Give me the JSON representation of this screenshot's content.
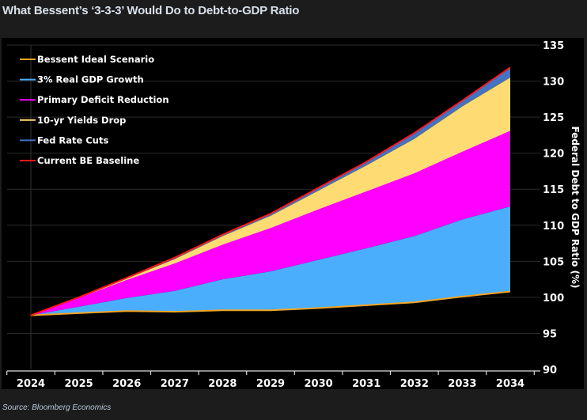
{
  "title": "What Bessent’s ‘3-3-3’ Would Do to Debt-to-GDP Ratio",
  "source": "Source: Bloomberg Economics",
  "chart_data": {
    "type": "area",
    "title": "What Bessent’s ‘3-3-3’ Would Do to Debt-to-GDP Ratio",
    "xlabel": "",
    "ylabel": "Federal Debt to GDP Ratio (%)",
    "ylim": [
      90,
      135
    ],
    "yticks": [
      90,
      95,
      100,
      105,
      110,
      115,
      120,
      125,
      130,
      135
    ],
    "x": [
      2024,
      2025,
      2026,
      2027,
      2028,
      2029,
      2030,
      2031,
      2032,
      2033,
      2034
    ],
    "legend_position": "top-left",
    "grid": true,
    "series": [
      {
        "name": "Bessent Ideal Scenario",
        "color": "#f5a623",
        "values": [
          97.5,
          97.8,
          98.1,
          98.0,
          98.2,
          98.2,
          98.5,
          98.9,
          99.3,
          100.1,
          100.8
        ]
      },
      {
        "name": "3% Real GDP Growth",
        "color": "#4aaefc",
        "values": [
          97.5,
          98.7,
          99.9,
          100.9,
          102.5,
          103.6,
          105.2,
          106.8,
          108.5,
          110.8,
          112.6
        ]
      },
      {
        "name": "Primary Deficit Reduction",
        "color": "#ff00ff",
        "values": [
          97.5,
          99.9,
          102.4,
          104.7,
          107.3,
          109.6,
          112.2,
          114.7,
          117.2,
          120.2,
          123.1
        ]
      },
      {
        "name": "10-yr Yields Drop",
        "color": "#ffdc73",
        "values": [
          97.5,
          99.9,
          102.6,
          105.3,
          108.5,
          111.3,
          114.8,
          118.3,
          122.0,
          126.5,
          130.5
        ]
      },
      {
        "name": "Fed Rate Cuts",
        "color": "#4472c4",
        "values": [
          97.5,
          100.0,
          102.7,
          105.5,
          108.7,
          111.6,
          115.2,
          118.8,
          122.8,
          127.3,
          131.9
        ]
      },
      {
        "name": "Current BE Baseline",
        "color": "#ff1a1a",
        "values": [
          97.5,
          100.0,
          102.7,
          105.5,
          108.7,
          111.6,
          115.2,
          118.8,
          122.8,
          127.3,
          131.9
        ]
      }
    ]
  }
}
